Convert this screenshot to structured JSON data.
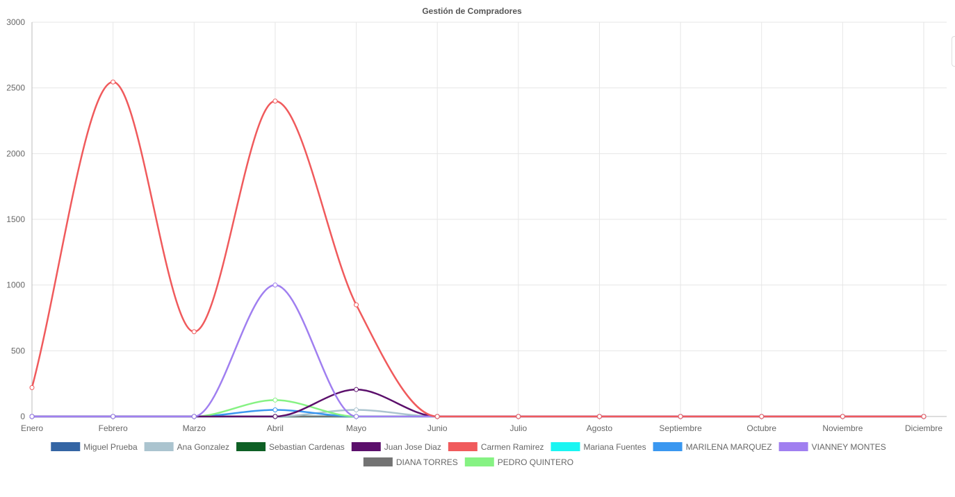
{
  "chart_data": {
    "type": "line",
    "title": "Gestión de Compradores",
    "xlabel": "",
    "ylabel": "",
    "categories": [
      "Enero",
      "Febrero",
      "Marzo",
      "Abril",
      "Mayo",
      "Junio",
      "Julio",
      "Agosto",
      "Septiembre",
      "Octubre",
      "Noviembre",
      "Diciembre"
    ],
    "ylim": [
      0,
      3000
    ],
    "yticks": [
      0,
      500,
      1000,
      1500,
      2000,
      2500,
      3000
    ],
    "grid": true,
    "legend_position": "bottom",
    "series": [
      {
        "name": "Miguel Prueba",
        "color": "#3465a4",
        "values": [
          0,
          0,
          0,
          0,
          0,
          0,
          0,
          0,
          0,
          0,
          0,
          0
        ]
      },
      {
        "name": "Ana Gonzalez",
        "color": "#abc4cf",
        "values": [
          0,
          0,
          0,
          0,
          50,
          0,
          0,
          0,
          0,
          0,
          0,
          0
        ]
      },
      {
        "name": "Sebastian Cardenas",
        "color": "#0e6025",
        "values": [
          0,
          0,
          0,
          0,
          0,
          0,
          0,
          0,
          0,
          0,
          0,
          0
        ]
      },
      {
        "name": "Juan Jose Diaz",
        "color": "#5b0f6b",
        "values": [
          0,
          0,
          0,
          0,
          205,
          0,
          0,
          0,
          0,
          0,
          0,
          0
        ]
      },
      {
        "name": "Carmen Ramirez",
        "color": "#f05a5c",
        "values": [
          220,
          2545,
          645,
          2400,
          850,
          0,
          0,
          0,
          0,
          0,
          0,
          0
        ]
      },
      {
        "name": "Mariana Fuentes",
        "color": "#19f5f2",
        "values": [
          0,
          0,
          0,
          0,
          0,
          0,
          0,
          0,
          0,
          0,
          0,
          0
        ]
      },
      {
        "name": "MARILENA MARQUEZ",
        "color": "#3a97f0",
        "values": [
          0,
          0,
          0,
          50,
          0,
          0,
          0,
          0,
          0,
          0,
          0,
          0
        ]
      },
      {
        "name": "VIANNEY MONTES",
        "color": "#a07ff0",
        "values": [
          0,
          0,
          0,
          1000,
          0,
          0,
          0,
          0,
          0,
          0,
          0,
          0
        ]
      },
      {
        "name": "DIANA TORRES",
        "color": "#737373",
        "values": [
          0,
          0,
          0,
          0,
          0,
          0,
          0,
          0,
          0,
          0,
          0,
          0
        ]
      },
      {
        "name": "PEDRO QUINTERO",
        "color": "#86f283",
        "values": [
          0,
          0,
          0,
          125,
          0,
          0,
          0,
          0,
          0,
          0,
          0,
          0
        ]
      }
    ]
  }
}
